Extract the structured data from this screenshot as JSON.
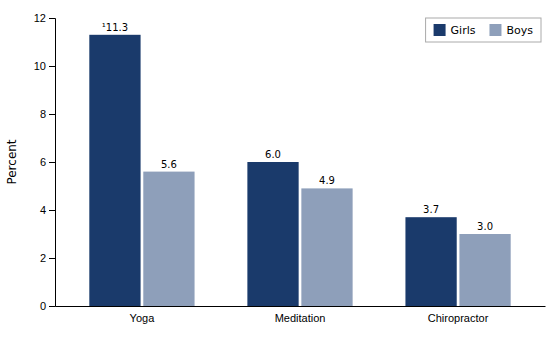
{
  "chart_data": {
    "type": "bar",
    "categories": [
      "Yoga",
      "Meditation",
      "Chiropractor"
    ],
    "series": [
      {
        "name": "Girls",
        "color": "#1a3a6b",
        "values": [
          11.3,
          6.0,
          3.7
        ],
        "value_labels": [
          "¹11.3",
          "6.0",
          "3.7"
        ]
      },
      {
        "name": "Boys",
        "color": "#8e9fba",
        "values": [
          5.6,
          4.9,
          3.0
        ],
        "value_labels": [
          "5.6",
          "4.9",
          "3.0"
        ]
      }
    ],
    "ylabel": "Percent",
    "ylim": [
      0,
      12
    ],
    "yticks": [
      0,
      2,
      4,
      6,
      8,
      10,
      12
    ],
    "legend": "upper-right",
    "data_labels": true,
    "grid": false
  }
}
